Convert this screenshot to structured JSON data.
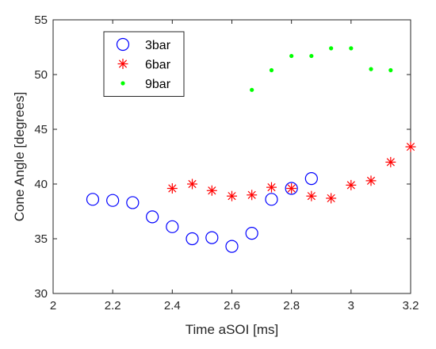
{
  "chart_data": {
    "type": "scatter",
    "xlabel": "Time aSOI [ms]",
    "ylabel": "Cone Angle [degrees]",
    "xlim": [
      2,
      3.2
    ],
    "ylim": [
      30,
      55
    ],
    "xticks": [
      2,
      2.2,
      2.4,
      2.6,
      2.8,
      3,
      3.2
    ],
    "xtick_labels": [
      "2",
      "2.2",
      "2.4",
      "2.6",
      "2.8",
      "3",
      "3.2"
    ],
    "yticks": [
      30,
      35,
      40,
      45,
      50,
      55
    ],
    "ytick_labels": [
      "30",
      "35",
      "40",
      "45",
      "50",
      "55"
    ],
    "grid": false,
    "legend_position": "top-left",
    "series": [
      {
        "name": "3bar",
        "marker": "circle",
        "color": "#0000ff",
        "x": [
          2.133,
          2.2,
          2.267,
          2.333,
          2.4,
          2.467,
          2.533,
          2.6,
          2.667,
          2.733,
          2.8,
          2.867
        ],
        "y": [
          38.6,
          38.5,
          38.3,
          37.0,
          36.1,
          35.0,
          35.1,
          34.3,
          35.5,
          38.6,
          39.6,
          40.5
        ]
      },
      {
        "name": "6bar",
        "marker": "asterisk",
        "color": "#ff0000",
        "x": [
          2.4,
          2.467,
          2.533,
          2.6,
          2.667,
          2.733,
          2.8,
          2.867,
          2.933,
          3.0,
          3.067,
          3.133,
          3.2
        ],
        "y": [
          39.6,
          40.0,
          39.4,
          38.9,
          39.0,
          39.7,
          39.6,
          38.9,
          38.7,
          39.9,
          40.3,
          42.0,
          43.4
        ]
      },
      {
        "name": "9bar",
        "marker": "dot",
        "color": "#00ff00",
        "x": [
          2.667,
          2.733,
          2.8,
          2.867,
          2.933,
          3.0,
          3.067,
          3.133
        ],
        "y": [
          48.6,
          50.4,
          51.7,
          51.7,
          52.4,
          52.4,
          50.5,
          50.4
        ]
      }
    ]
  }
}
